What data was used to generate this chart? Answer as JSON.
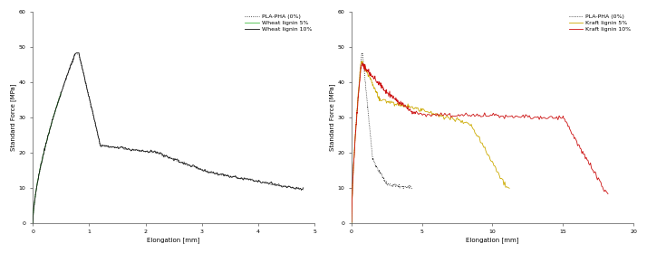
{
  "left_chart": {
    "xlabel": "Elongation [mm]",
    "ylabel": "Standard Force [MPa]",
    "xlim": [
      0,
      5
    ],
    "ylim": [
      0,
      60
    ],
    "yticks": [
      0,
      10,
      20,
      30,
      40,
      50,
      60
    ],
    "xticks": [
      0,
      1,
      2,
      3,
      4,
      5
    ],
    "legend": [
      {
        "label": "PLA-PHA (0%)",
        "color": "#222222",
        "linestyle": "dotted",
        "linewidth": 0.6
      },
      {
        "label": "Wheat lignin 5%",
        "color": "#44bb44",
        "linestyle": "solid",
        "linewidth": 0.6
      },
      {
        "label": "Wheat lignin 10%",
        "color": "#111111",
        "linestyle": "solid",
        "linewidth": 0.6
      }
    ]
  },
  "right_chart": {
    "xlabel": "Elongation [mm]",
    "ylabel": "Standard Force [MPa]",
    "xlim": [
      0,
      20
    ],
    "ylim": [
      0,
      60
    ],
    "yticks": [
      0,
      10,
      20,
      30,
      40,
      50,
      60
    ],
    "xticks": [
      0,
      5,
      10,
      15,
      20
    ],
    "legend": [
      {
        "label": "PLA-PHA (0%)",
        "color": "#222222",
        "linestyle": "dotted",
        "linewidth": 0.6
      },
      {
        "label": "Kraft lignin 5%",
        "color": "#ccaa00",
        "linestyle": "solid",
        "linewidth": 0.6
      },
      {
        "label": "Kraft lignin 10%",
        "color": "#cc1111",
        "linestyle": "solid",
        "linewidth": 0.6
      }
    ]
  },
  "background_color": "#ffffff",
  "grid_color": "#aaaaaa",
  "font_size": 5,
  "tick_size": 4.5
}
